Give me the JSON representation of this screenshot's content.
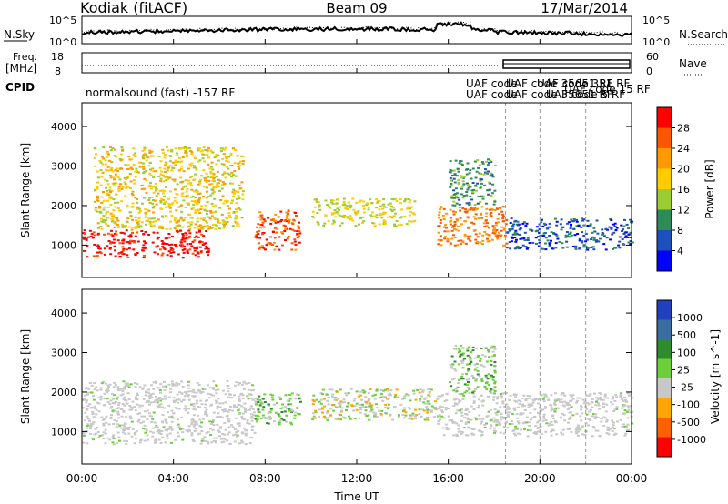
{
  "header": {
    "station": "Kodiak (fitACF)",
    "beam": "Beam 09",
    "date": "17/Mar/2014"
  },
  "noise_panel": {
    "left_label": "N.Sky",
    "right_label": "N.Search",
    "left_ticks": [
      "10^5",
      "10^0"
    ],
    "right_ticks": [
      "10^5",
      "10^0"
    ]
  },
  "freq_panel": {
    "left_label_1": "Freq.",
    "left_label_2": "[MHz]",
    "right_label": "Nave",
    "left_ticks": [
      "18",
      "8"
    ],
    "right_ticks": [
      "60",
      "0"
    ]
  },
  "cpid": {
    "label": "CPID",
    "segments": [
      "normalsound (fast) -157 RF",
      "UAF code",
      "UAF code",
      "UAF code 35651 RF",
      "UAF code 35651 RF"
    ],
    "overlap_texts": [
      "UAF code 351 RF",
      "UAF code 5 RF",
      "UAF code 15 RF"
    ]
  },
  "x_axis": {
    "label": "Time UT",
    "ticks": [
      "00:00",
      "04:00",
      "08:00",
      "12:00",
      "16:00",
      "20:00",
      "00:00"
    ]
  },
  "y_axis": {
    "label": "Slant Range [km]",
    "ticks": [
      "1000",
      "2000",
      "3000",
      "4000"
    ]
  },
  "power_colorbar": {
    "label": "Power [dB]",
    "ticks": [
      "28",
      "24",
      "20",
      "16",
      "12",
      "8",
      "4"
    ],
    "colors": [
      "#ff0000",
      "#ff5500",
      "#ff9900",
      "#ffcc00",
      "#9acd32",
      "#2e8b57",
      "#1e4fbf",
      "#0000ff"
    ]
  },
  "velocity_colorbar": {
    "label": "Velocity [m s^-1]",
    "ticks": [
      "1000",
      "500",
      "100",
      "25",
      "-25",
      "-100",
      "-500",
      "-1000"
    ],
    "colors": [
      "#2040c0",
      "#3a6ea0",
      "#2e8b2e",
      "#6ccf3a",
      "#c8c8c8",
      "#ffa500",
      "#ff6000",
      "#ff0000"
    ]
  },
  "chart_data": {
    "type": "heatmap",
    "title": "Kodiak (fitACF) Beam 09 17/Mar/2014",
    "xlabel": "Time UT",
    "ylabel": "Slant Range [km]",
    "xlim": [
      "00:00",
      "24:00"
    ],
    "ylim": [
      180,
      4600
    ],
    "panels": [
      {
        "quantity": "Power [dB]",
        "clim": [
          0,
          32
        ],
        "echo_regions": [
          {
            "t_start_h": 0.0,
            "t_end_h": 5.5,
            "range_km": [
              700,
              1400
            ],
            "value": 30
          },
          {
            "t_start_h": 0.5,
            "t_end_h": 7.0,
            "range_km": [
              1400,
              3500
            ],
            "value": 18
          },
          {
            "t_start_h": 7.5,
            "t_end_h": 9.5,
            "range_km": [
              900,
              1900
            ],
            "value": 26
          },
          {
            "t_start_h": 10.0,
            "t_end_h": 14.5,
            "range_km": [
              1500,
              2200
            ],
            "value": 16
          },
          {
            "t_start_h": 15.5,
            "t_end_h": 18.5,
            "range_km": [
              1000,
              2000
            ],
            "value": 24
          },
          {
            "t_start_h": 16.0,
            "t_end_h": 18.0,
            "range_km": [
              2000,
              3200
            ],
            "value": 10
          },
          {
            "t_start_h": 18.5,
            "t_end_h": 24.0,
            "range_km": [
              900,
              1700
            ],
            "value": 6
          }
        ]
      },
      {
        "quantity": "Velocity [m s-1]",
        "clim": [
          -1000,
          1000
        ],
        "echo_regions": [
          {
            "t_start_h": 0.0,
            "t_end_h": 7.5,
            "range_km": [
              700,
              2300
            ],
            "value": 0
          },
          {
            "t_start_h": 7.5,
            "t_end_h": 9.5,
            "range_km": [
              1200,
              2000
            ],
            "value": 100
          },
          {
            "t_start_h": 10.0,
            "t_end_h": 15.5,
            "range_km": [
              1300,
              2100
            ],
            "value": -100
          },
          {
            "t_start_h": 15.5,
            "t_end_h": 24.0,
            "range_km": [
              900,
              2000
            ],
            "value": 0
          },
          {
            "t_start_h": 16.0,
            "t_end_h": 18.0,
            "range_km": [
              2000,
              3200
            ],
            "value": 100
          }
        ]
      }
    ]
  }
}
